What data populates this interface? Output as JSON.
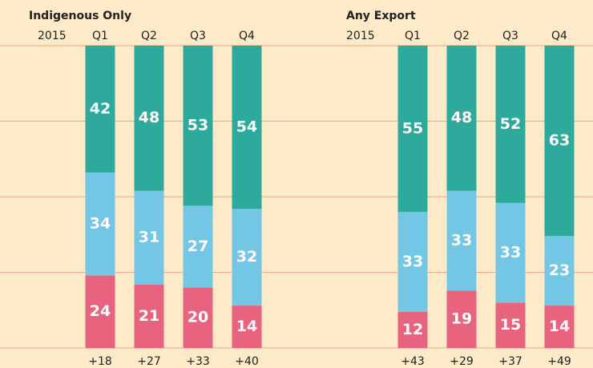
{
  "chart_data": [
    {
      "type": "stacked-bar",
      "title": "Indigenous Only",
      "period_label": "2015",
      "categories": [
        "Q1",
        "Q2",
        "Q3",
        "Q4"
      ],
      "series": [
        {
          "color": "#e8637e",
          "values": [
            24,
            21,
            20,
            14
          ]
        },
        {
          "color": "#74c7e4",
          "values": [
            34,
            31,
            27,
            32
          ]
        },
        {
          "color": "#2eaa9c",
          "values": [
            42,
            48,
            53,
            54
          ]
        }
      ],
      "net_labels": [
        "+18",
        "+27",
        "+33",
        "+40"
      ],
      "ylim": [
        0,
        100
      ],
      "yticks": [
        0,
        25,
        50,
        75,
        100
      ],
      "grid": true
    },
    {
      "type": "stacked-bar",
      "title": "Any Export",
      "period_label": "2015",
      "categories": [
        "Q1",
        "Q2",
        "Q3",
        "Q4"
      ],
      "series": [
        {
          "color": "#e8637e",
          "values": [
            12,
            19,
            15,
            14
          ]
        },
        {
          "color": "#74c7e4",
          "values": [
            33,
            33,
            33,
            23
          ]
        },
        {
          "color": "#2eaa9c",
          "values": [
            55,
            48,
            52,
            63
          ]
        }
      ],
      "net_labels": [
        "+43",
        "+29",
        "+37",
        "+49"
      ],
      "ylim": [
        0,
        100
      ],
      "yticks": [
        0,
        25,
        50,
        75,
        100
      ],
      "grid": true
    }
  ]
}
